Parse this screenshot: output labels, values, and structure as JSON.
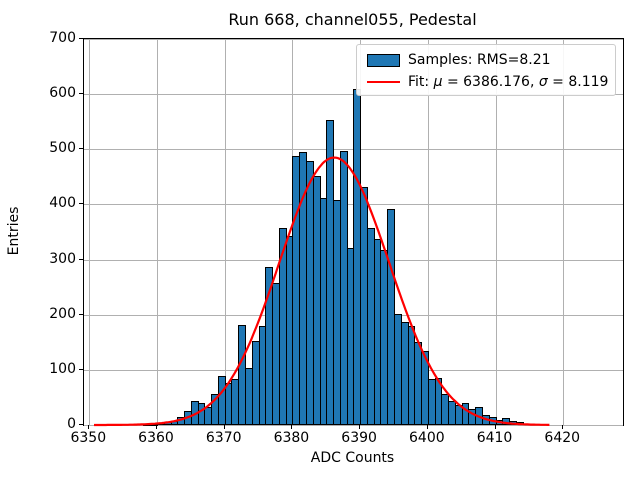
{
  "figure": {
    "title": "Run 668, channel055, Pedestal",
    "xlabel": "ADC Counts",
    "ylabel": "Entries"
  },
  "legend": {
    "samples_label": "Samples: RMS=8.21",
    "fit_label": "Fit: μ = 6386.176, σ = 8.119"
  },
  "colors": {
    "bar_fill": "#1f77b4",
    "bar_edge": "#000000",
    "fit_line": "#ff0000",
    "grid": "#b0b0b0",
    "spine": "#000000",
    "background": "#ffffff"
  },
  "chart_data": {
    "type": "bar",
    "subtype": "histogram-with-gaussian-fit",
    "title": "Run 668, channel055, Pedestal",
    "xlabel": "ADC Counts",
    "ylabel": "Entries",
    "grid": true,
    "legend_position": "upper right",
    "xlim": [
      6349.2,
      6428.8
    ],
    "ylim": [
      0,
      700
    ],
    "x_ticks": [
      6350,
      6360,
      6370,
      6380,
      6390,
      6400,
      6410,
      6420
    ],
    "y_ticks": [
      0,
      100,
      200,
      300,
      400,
      500,
      600,
      700
    ],
    "bin_width": 1,
    "bin_left_edges": [
      6358,
      6359,
      6360,
      6361,
      6362,
      6363,
      6364,
      6365,
      6366,
      6367,
      6368,
      6369,
      6370,
      6371,
      6372,
      6373,
      6374,
      6375,
      6376,
      6377,
      6378,
      6379,
      6380,
      6381,
      6382,
      6383,
      6384,
      6385,
      6386,
      6387,
      6388,
      6389,
      6390,
      6391,
      6392,
      6393,
      6394,
      6395,
      6396,
      6397,
      6398,
      6399,
      6400,
      6401,
      6402,
      6403,
      6404,
      6405,
      6406,
      6407,
      6408,
      6409,
      6410,
      6411,
      6412,
      6413
    ],
    "values": [
      1,
      2,
      3,
      5,
      8,
      15,
      25,
      43,
      39,
      33,
      57,
      88,
      77,
      83,
      182,
      104,
      153,
      179,
      287,
      257,
      357,
      343,
      487,
      495,
      478,
      452,
      411,
      554,
      408,
      496,
      321,
      610,
      432,
      358,
      337,
      317,
      392,
      201,
      186,
      179,
      151,
      135,
      83,
      85,
      56,
      44,
      36,
      40,
      29,
      32,
      19,
      14,
      9,
      13,
      8,
      5
    ],
    "series": [
      {
        "name": "Samples: RMS=8.21",
        "type": "histogram",
        "rms": 8.21
      },
      {
        "name": "Fit: μ = 6386.176, σ = 8.119",
        "type": "line",
        "color": "#ff0000"
      }
    ],
    "fit": {
      "type": "gaussian",
      "mu": 6386.176,
      "sigma": 8.119,
      "amplitude": 485,
      "x_range": [
        6350.7,
        6418
      ]
    }
  }
}
